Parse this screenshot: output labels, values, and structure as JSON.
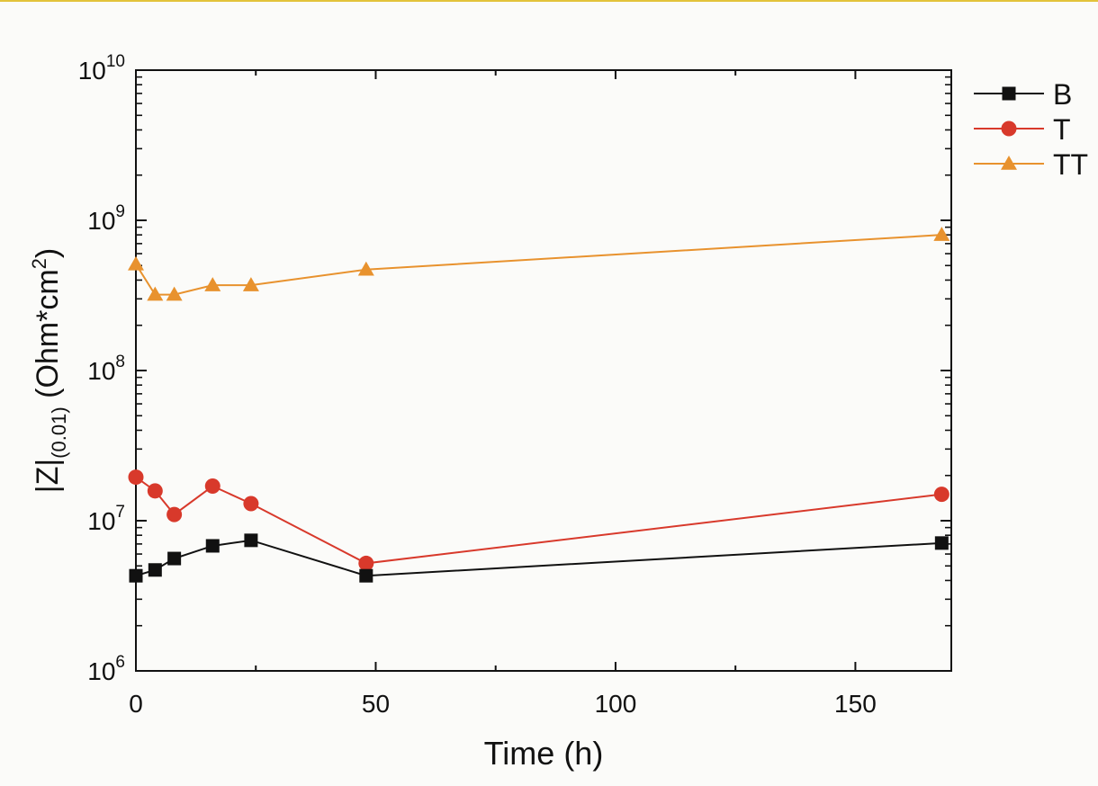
{
  "colors": {
    "axis": "#111111",
    "top_rule": "#e3c33b",
    "B": "#111111",
    "T": "#d8392b",
    "TT": "#e8922e"
  },
  "chart_data": {
    "type": "line",
    "title": "",
    "xlabel": "Time (h)",
    "ylabel": {
      "base": "|Z|",
      "subscript": "(0.01)",
      "unit_prefix": " (Ohm*cm",
      "unit_sup": "2",
      "unit_suffix": ")"
    },
    "xscale": "linear",
    "yscale": "log",
    "xlim": [
      0,
      170
    ],
    "ylim": [
      1000000,
      10000000000
    ],
    "xticks": [
      {
        "value": 0,
        "label": "0"
      },
      {
        "value": 50,
        "label": "50"
      },
      {
        "value": 100,
        "label": "100"
      },
      {
        "value": 150,
        "label": "150"
      }
    ],
    "yticks": [
      {
        "value": 1000000,
        "base": "10",
        "exp": "6"
      },
      {
        "value": 10000000,
        "base": "10",
        "exp": "7"
      },
      {
        "value": 100000000,
        "base": "10",
        "exp": "8"
      },
      {
        "value": 1000000000,
        "base": "10",
        "exp": "9"
      },
      {
        "value": 10000000000,
        "base": "10",
        "exp": "10"
      }
    ],
    "legend_position": "outside top-right",
    "series": [
      {
        "name": "B",
        "marker": "square",
        "x": [
          0,
          4,
          8,
          16,
          24,
          48,
          168
        ],
        "y": [
          4300000,
          4700000,
          5600000,
          6800000,
          7400000,
          4300000,
          7100000
        ]
      },
      {
        "name": "T",
        "marker": "circle",
        "x": [
          0,
          4,
          8,
          16,
          24,
          48,
          168
        ],
        "y": [
          19500000,
          15800000,
          11000000,
          17000000,
          13000000,
          5200000,
          15000000
        ]
      },
      {
        "name": "TT",
        "marker": "triangle",
        "x": [
          0,
          4,
          8,
          16,
          24,
          48,
          168
        ],
        "y": [
          510000000,
          320000000,
          320000000,
          370000000,
          370000000,
          470000000,
          800000000
        ]
      }
    ]
  }
}
